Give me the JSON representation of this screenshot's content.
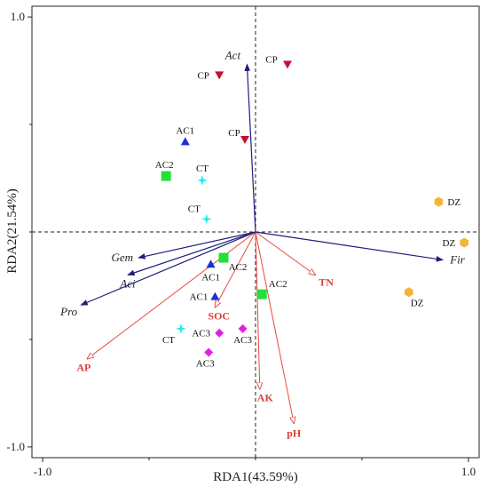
{
  "chart_data": {
    "type": "scatter",
    "subtype": "rda-biplot",
    "xlabel": "RDA1(43.59%)",
    "ylabel": "RDA2(21.54%)",
    "xlim": [
      -1.05,
      1.05
    ],
    "ylim": [
      -1.05,
      1.05
    ],
    "ticks": [
      {
        "value": -1.0,
        "label": "-1.0"
      },
      {
        "value": 1.0,
        "label": "1.0"
      }
    ],
    "grid": false,
    "origin_lines": "dashed",
    "colors": {
      "species_arrow": "#1f1f7a",
      "env_arrow": "#e8473f",
      "env_label": "#d9413a",
      "CP": "#c8102e",
      "AC1": "#1a2fd6",
      "AC2": "#22e03a",
      "AC3": "#e020e0",
      "CT": "#22e8f0",
      "DZ": "#f4b43a"
    },
    "species_arrows": [
      {
        "name": "Act",
        "x": -0.04,
        "y": 0.78
      },
      {
        "name": "Gem",
        "x": -0.55,
        "y": -0.12
      },
      {
        "name": "Aci",
        "x": -0.6,
        "y": -0.2
      },
      {
        "name": "Pro",
        "x": -0.82,
        "y": -0.34
      },
      {
        "name": "Fir",
        "x": 0.88,
        "y": -0.13
      }
    ],
    "env_arrows": [
      {
        "name": "TN",
        "x": 0.28,
        "y": -0.2
      },
      {
        "name": "SOC",
        "x": -0.19,
        "y": -0.35
      },
      {
        "name": "AP",
        "x": -0.79,
        "y": -0.59
      },
      {
        "name": "AK",
        "x": 0.02,
        "y": -0.73
      },
      {
        "name": "pH",
        "x": 0.18,
        "y": -0.89
      }
    ],
    "samples": [
      {
        "group": "CP",
        "shape": "triangle-down",
        "label": "CP",
        "x": 0.15,
        "y": 0.78
      },
      {
        "group": "CP",
        "shape": "triangle-down",
        "label": "CP",
        "x": -0.17,
        "y": 0.73
      },
      {
        "group": "CP",
        "shape": "triangle-down",
        "label": "CP",
        "x": -0.05,
        "y": 0.43
      },
      {
        "group": "AC1",
        "shape": "triangle-up",
        "label": "AC1",
        "x": -0.33,
        "y": 0.42
      },
      {
        "group": "AC1",
        "shape": "triangle-up",
        "label": "AC1",
        "x": -0.21,
        "y": -0.15
      },
      {
        "group": "AC1",
        "shape": "triangle-up",
        "label": "AC1",
        "x": -0.19,
        "y": -0.3
      },
      {
        "group": "AC2",
        "shape": "square",
        "label": "AC2",
        "x": -0.42,
        "y": 0.26
      },
      {
        "group": "AC2",
        "shape": "square",
        "label": "AC2",
        "x": -0.15,
        "y": -0.12
      },
      {
        "group": "AC2",
        "shape": "square",
        "label": "AC2",
        "x": 0.03,
        "y": -0.29
      },
      {
        "group": "AC3",
        "shape": "diamond",
        "label": "AC3",
        "x": -0.17,
        "y": -0.47
      },
      {
        "group": "AC3",
        "shape": "diamond",
        "label": "AC3",
        "x": -0.06,
        "y": -0.45
      },
      {
        "group": "AC3",
        "shape": "diamond",
        "label": "AC3",
        "x": -0.22,
        "y": -0.56
      },
      {
        "group": "CT",
        "shape": "star",
        "label": "CT",
        "x": -0.25,
        "y": 0.24
      },
      {
        "group": "CT",
        "shape": "star",
        "label": "CT",
        "x": -0.23,
        "y": 0.06
      },
      {
        "group": "CT",
        "shape": "star",
        "label": "CT",
        "x": -0.35,
        "y": -0.45
      },
      {
        "group": "DZ",
        "shape": "hexagon",
        "label": "DZ",
        "x": 0.86,
        "y": 0.14
      },
      {
        "group": "DZ",
        "shape": "hexagon",
        "label": "DZ",
        "x": 0.98,
        "y": -0.05
      },
      {
        "group": "DZ",
        "shape": "hexagon",
        "label": "DZ",
        "x": 0.72,
        "y": -0.28
      }
    ]
  }
}
